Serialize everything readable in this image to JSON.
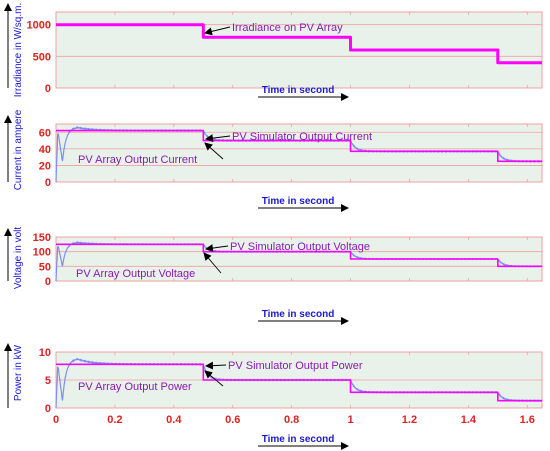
{
  "colors": {
    "plot_bg": "#e9f2ea",
    "grid": "#f0a0a0",
    "tick_text": "#dd2222",
    "label_text": "#1a1acc",
    "annotation_text": "#8a1ab4",
    "simulator_line": "#ff00ff",
    "array_line": "#7b8ff2"
  },
  "chart_data": [
    {
      "type": "line",
      "ylabel": "Irradiance in W/sq.m.",
      "xlabel": "Time in second",
      "xlim": [
        0,
        1.65
      ],
      "ylim": [
        0,
        1200
      ],
      "yticks": [
        "0",
        "500",
        "1000"
      ],
      "ytick_values": [
        0,
        500,
        1000
      ],
      "xtick_labels": [],
      "grid": true,
      "series": [
        {
          "name": "Irradiance on PV Array",
          "kind": "step",
          "x": [
            0,
            0.5,
            0.5,
            1.0,
            1.0,
            1.5,
            1.5,
            1.65
          ],
          "y": [
            1000,
            1000,
            800,
            800,
            600,
            600,
            400,
            400
          ]
        }
      ],
      "annotations": [
        {
          "text": "Irradiance on PV Array",
          "target_x": 0.5,
          "target_y": 800
        }
      ]
    },
    {
      "type": "line",
      "ylabel": "Current in ampere",
      "xlabel": "Time in second",
      "xlim": [
        0,
        1.65
      ],
      "ylim": [
        0,
        70
      ],
      "yticks": [
        "0",
        "20",
        "40",
        "60"
      ],
      "ytick_values": [
        0,
        20,
        40,
        60
      ],
      "xtick_labels": [],
      "grid": true,
      "series": [
        {
          "name": "PV Simulator Output Current",
          "kind": "step",
          "x": [
            0,
            0.5,
            0.5,
            1.0,
            1.0,
            1.5,
            1.5,
            1.65
          ],
          "y": [
            62,
            62,
            50,
            50,
            37,
            37,
            25,
            25
          ]
        },
        {
          "name": "PV Array Output Current",
          "kind": "response",
          "levels": [
            62,
            50,
            37,
            25
          ],
          "start": 0,
          "undershoot": 25,
          "overshoot": 66
        }
      ],
      "annotations": [
        {
          "text": "PV Simulator Output Current",
          "target_x": 0.5,
          "target_y": 62
        },
        {
          "text": "PV Array Output Current",
          "target_x": 0.5,
          "target_y": 58
        }
      ]
    },
    {
      "type": "line",
      "ylabel": "Voltage in volt",
      "xlabel": "Time in second",
      "xlim": [
        0,
        1.65
      ],
      "ylim": [
        0,
        150
      ],
      "yticks": [
        "0",
        "50",
        "100",
        "150"
      ],
      "ytick_values": [
        0,
        50,
        100,
        150
      ],
      "xtick_labels": [],
      "grid": true,
      "series": [
        {
          "name": "PV Simulator Output Voltage",
          "kind": "step",
          "x": [
            0,
            0.5,
            0.5,
            1.0,
            1.0,
            1.5,
            1.5,
            1.65
          ],
          "y": [
            125,
            125,
            100,
            100,
            75,
            75,
            50,
            50
          ]
        },
        {
          "name": "PV Array Output Voltage",
          "kind": "response",
          "levels": [
            125,
            100,
            75,
            50
          ],
          "start": 0,
          "undershoot": 50,
          "overshoot": 132
        }
      ],
      "annotations": [
        {
          "text": "PV Simulator Output Voltage",
          "target_x": 0.5,
          "target_y": 125
        },
        {
          "text": "PV Array Output Voltage",
          "target_x": 0.5,
          "target_y": 115
        }
      ]
    },
    {
      "type": "line",
      "ylabel": "Power in kW",
      "xlabel": "Time in second",
      "xlim": [
        0,
        1.65
      ],
      "ylim": [
        0,
        10
      ],
      "yticks": [
        "0",
        "5",
        "10"
      ],
      "ytick_values": [
        0,
        5,
        10
      ],
      "xtick_labels": [
        "0",
        "0.2",
        "0.4",
        "0.6",
        "0.8",
        "1",
        "1.2",
        "1.4",
        "1.6"
      ],
      "xtick_values": [
        0,
        0.2,
        0.4,
        0.6,
        0.8,
        1.0,
        1.2,
        1.4,
        1.6
      ],
      "grid": true,
      "series": [
        {
          "name": "PV Simulator Output Power",
          "kind": "step",
          "x": [
            0,
            0.5,
            0.5,
            1.0,
            1.0,
            1.5,
            1.5,
            1.65
          ],
          "y": [
            7.8,
            7.8,
            5,
            5,
            2.8,
            2.8,
            1.3,
            1.3
          ]
        },
        {
          "name": "PV Array Output Power",
          "kind": "response",
          "levels": [
            7.8,
            5,
            2.8,
            1.3
          ],
          "start": 0,
          "undershoot": 1.3,
          "overshoot": 8.8
        }
      ],
      "annotations": [
        {
          "text": "PV Simulator Output Power",
          "target_x": 0.5,
          "target_y": 7.8
        },
        {
          "text": "PV Array Output Power",
          "target_x": 0.5,
          "target_y": 7.0
        }
      ]
    }
  ]
}
